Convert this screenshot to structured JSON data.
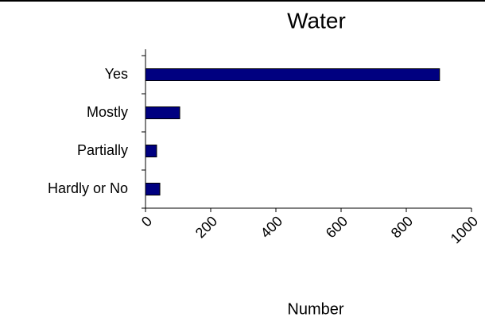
{
  "chart_data": {
    "type": "bar",
    "orientation": "horizontal",
    "title": "Water",
    "x_label": "Number",
    "categories": [
      "Yes",
      "Mostly",
      "Partially",
      "Hardly or No"
    ],
    "values": [
      902,
      105,
      34,
      44
    ],
    "color": "#000080",
    "xlim": [
      0,
      1000
    ],
    "xticks": [
      0,
      200,
      400,
      600,
      800,
      1000
    ],
    "grid": false
  }
}
